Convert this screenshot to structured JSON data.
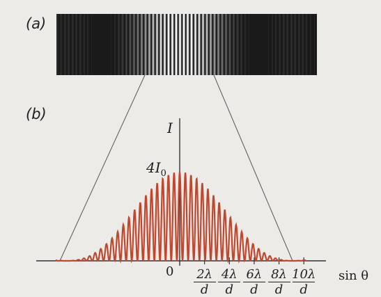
{
  "labels": {
    "panel_a": "(a)",
    "panel_b": "(b)"
  },
  "axis": {
    "y_label": "I",
    "peak_label": "4I",
    "peak_sub": "0",
    "origin_label": "0",
    "x_label": "sin θ",
    "ticks": [
      {
        "num": "2λ",
        "den": "d"
      },
      {
        "num": "4λ",
        "den": "d"
      },
      {
        "num": "6λ",
        "den": "d"
      },
      {
        "num": "8λ",
        "den": "d"
      },
      {
        "num": "10λ",
        "den": "d"
      }
    ]
  },
  "colors": {
    "curve": "#c0462e",
    "axis": "#333333",
    "pattern_dark": "#1a1a1a",
    "pattern_light": "#f2f2f2",
    "background": "#ecebe7"
  },
  "curve_model": {
    "description_shown": "two-slit interference within single-slit diffraction envelope",
    "fringe_spacing_in_x_ticks": 0.5,
    "envelope_zero_at_x": 10
  }
}
